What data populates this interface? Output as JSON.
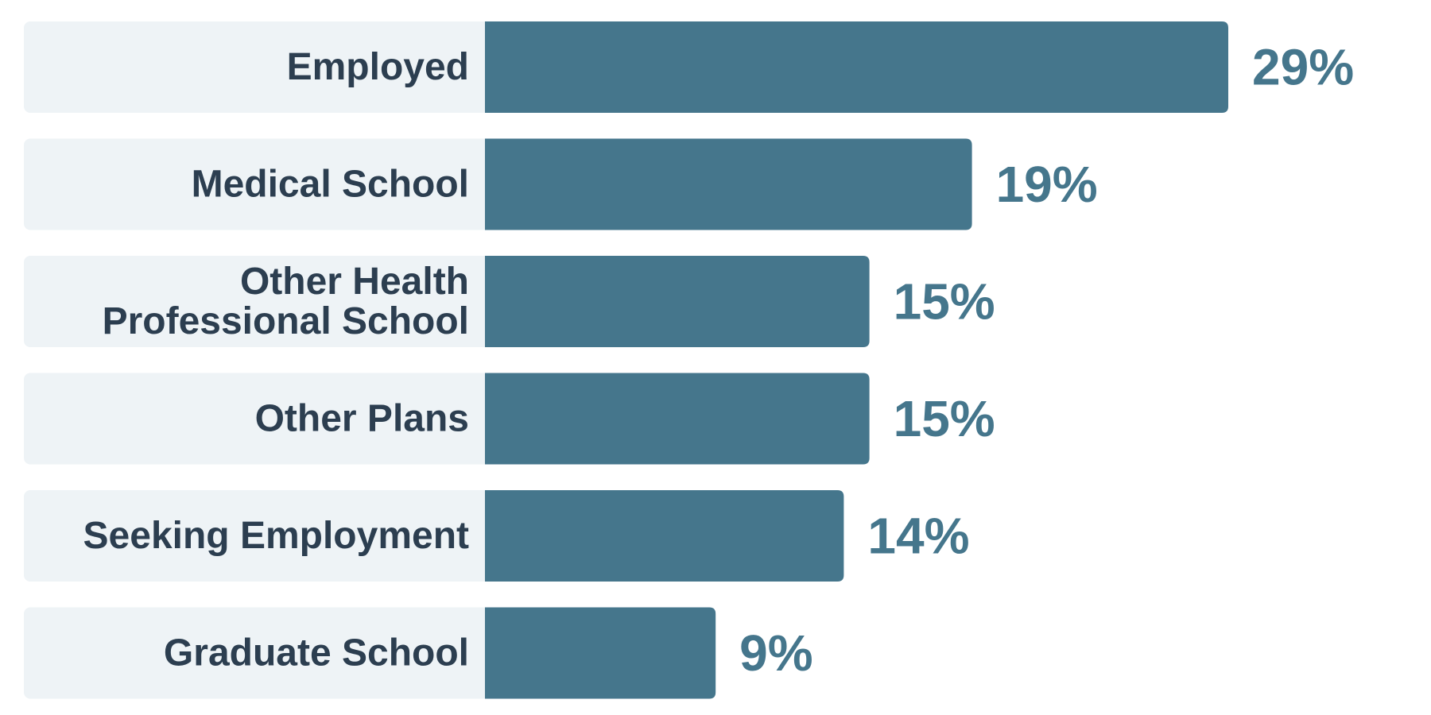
{
  "chart_data": {
    "type": "bar",
    "orientation": "horizontal",
    "categories": [
      "Employed",
      "Medical School",
      "Other Health Professional School",
      "Other Plans",
      "Seeking Employment",
      "Graduate School"
    ],
    "category_lines": [
      [
        "Employed"
      ],
      [
        "Medical School"
      ],
      [
        "Other Health",
        "Professional School"
      ],
      [
        "Other Plans"
      ],
      [
        "Seeking Employment"
      ],
      [
        "Graduate School"
      ]
    ],
    "values": [
      29,
      19,
      15,
      15,
      14,
      9
    ],
    "value_labels": [
      "29%",
      "19%",
      "15%",
      "15%",
      "14%",
      "9%"
    ],
    "value_unit": "%",
    "title": "",
    "xlabel": "",
    "ylabel": "",
    "xlim": [
      0,
      29
    ],
    "grid": false,
    "legend": "none",
    "colors": {
      "bar": "#45768c",
      "label_background": "#eef3f6",
      "category_text": "#2c3e50",
      "value_text": "#45768c"
    }
  }
}
